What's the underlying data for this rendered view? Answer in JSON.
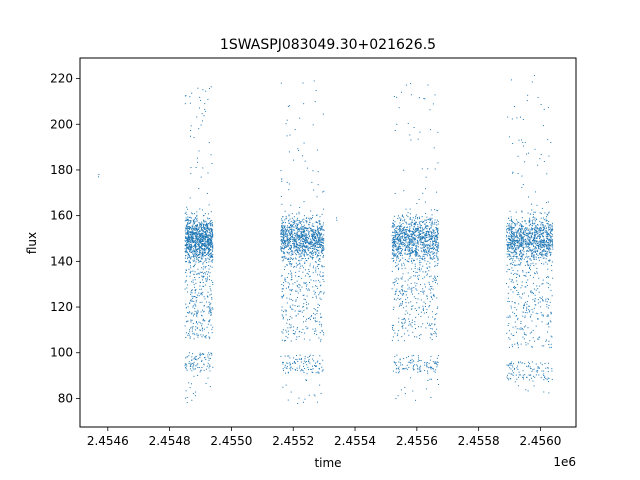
{
  "chart_data": {
    "type": "scatter",
    "title": "1SWASPJ083049.30+021626.5",
    "xlabel": "time",
    "ylabel": "flux",
    "x_offset_label": "1e6",
    "xlim": [
      2454510,
      2456115
    ],
    "ylim": [
      67.5,
      229
    ],
    "x_ticks": [
      2454600,
      2454800,
      2455000,
      2455200,
      2455400,
      2455600,
      2455800,
      2456000
    ],
    "x_tick_labels": [
      "2.4546",
      "2.4548",
      "2.4550",
      "2.4552",
      "2.4554",
      "2.4556",
      "2.4558",
      "2.4560"
    ],
    "y_ticks": [
      80,
      100,
      120,
      140,
      160,
      180,
      200,
      220
    ],
    "y_tick_labels": [
      "80",
      "100",
      "120",
      "140",
      "160",
      "180",
      "200",
      "220"
    ],
    "grid": false,
    "marker_color": "#1f77b4",
    "series": [
      {
        "name": "",
        "isolated_points": [
          [
            2454570,
            177
          ],
          [
            2454571,
            178
          ],
          [
            2455162,
            176
          ],
          [
            2455163,
            175
          ],
          [
            2455340,
            159
          ],
          [
            2455341,
            158
          ]
        ],
        "seasons": [
          {
            "x_start": 2454850,
            "x_end": 2454940,
            "core_median": 150,
            "core_width": 8,
            "min": 76,
            "max": 218,
            "low_band": 96
          },
          {
            "x_start": 2455160,
            "x_end": 2455300,
            "core_median": 150,
            "core_width": 8,
            "min": 77,
            "max": 221,
            "low_band": 95
          },
          {
            "x_start": 2455520,
            "x_end": 2455670,
            "core_median": 150,
            "core_width": 8,
            "min": 78,
            "max": 221,
            "low_band": 95
          },
          {
            "x_start": 2455890,
            "x_end": 2456040,
            "core_median": 150,
            "core_width": 8,
            "min": 82,
            "max": 222,
            "low_band": 92
          }
        ]
      }
    ]
  }
}
